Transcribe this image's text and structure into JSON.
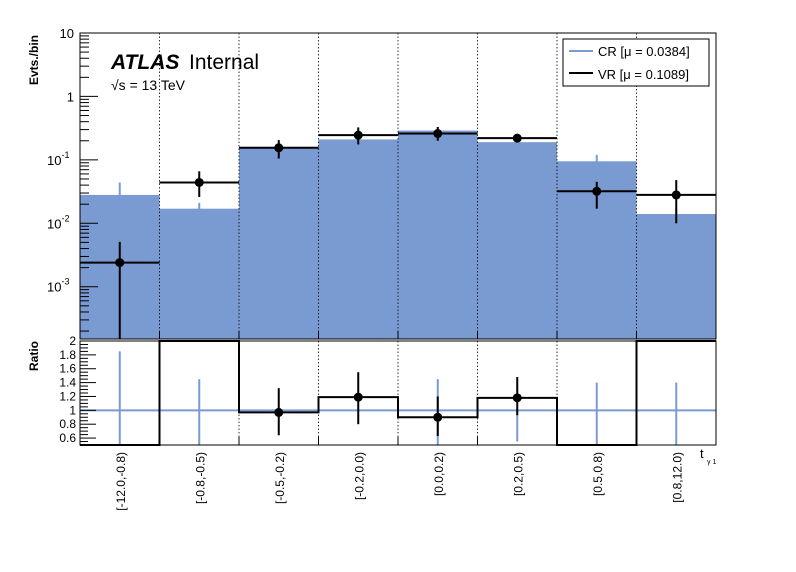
{
  "chart_data": {
    "type": "bar",
    "categories": [
      "[-12.0,-0.8)",
      "[-0.8,-0.5)",
      "[-0.5,-0.2)",
      "[-0.2,0.0)",
      "[0.0,0.2)",
      "[0.2,0.5)",
      "[0.5,0.8)",
      "[0.8,12.0)"
    ],
    "xlabel": "t",
    "xlabel_sub": "γ 1",
    "ylabel": "Evts./bin",
    "ratio_ylabel": "Ratio",
    "yscale": "log",
    "ylim": [
      0.00015,
      10
    ],
    "ratio_ylim": [
      0.5,
      2.0
    ],
    "yticks": [
      {
        "v": 0.001,
        "base": "10",
        "exp": "-3"
      },
      {
        "v": 0.01,
        "base": "10",
        "exp": "-2"
      },
      {
        "v": 0.1,
        "base": "10",
        "exp": "-1"
      },
      {
        "v": 1,
        "base": "1",
        "exp": ""
      },
      {
        "v": 10,
        "base": "10",
        "exp": ""
      }
    ],
    "ratio_yticks": [
      "0.6",
      "0.8",
      "1",
      "1.2",
      "1.4",
      "1.6",
      "1.8",
      "2"
    ],
    "ratio_ytick_values": [
      0.6,
      0.8,
      1.0,
      1.2,
      1.4,
      1.6,
      1.8,
      2.0
    ],
    "series": [
      {
        "name": "CR [μ = 0.0384]",
        "style": "filled",
        "color": "#7a9ad2",
        "values": [
          0.028,
          0.017,
          0.16,
          0.21,
          0.29,
          0.19,
          0.095,
          0.014
        ],
        "errors": [
          0.016,
          0.004,
          0.02,
          0.02,
          0.03,
          0.015,
          0.025,
          0.003
        ]
      },
      {
        "name": "VR [μ = 0.1089]",
        "style": "markers",
        "color": "#000000",
        "values": [
          0.0024,
          0.044,
          0.155,
          0.245,
          0.26,
          0.22,
          0.032,
          0.028
        ],
        "err_low": [
          0.0023,
          0.018,
          0.05,
          0.07,
          0.06,
          0.025,
          0.015,
          0.018
        ],
        "err_high": [
          0.0027,
          0.022,
          0.05,
          0.08,
          0.07,
          0.03,
          0.013,
          0.02
        ]
      }
    ],
    "ratio": {
      "values": [
        0.0,
        2.6,
        0.97,
        1.19,
        0.9,
        1.18,
        0.0,
        2.6
      ],
      "markers": [
        null,
        null,
        0.97,
        1.19,
        0.9,
        1.18,
        null,
        null
      ],
      "err_low": [
        0,
        0,
        0.33,
        0.39,
        0.27,
        0.25,
        0,
        0
      ],
      "err_high": [
        0,
        0,
        0.35,
        0.36,
        0.3,
        0.3,
        0,
        0
      ],
      "ref_err_high": [
        0.85,
        0.45,
        0,
        0,
        0.45,
        0,
        0.4,
        0.4
      ],
      "ref_err_low": [
        0.5,
        0.5,
        0,
        0,
        0.5,
        0.45,
        0.5,
        0.5
      ]
    },
    "label_brand": "ATLAS",
    "label_status": "Internal",
    "label_energy": "√s = 13 TeV",
    "grid_x": true,
    "legend_position": "top-right"
  }
}
